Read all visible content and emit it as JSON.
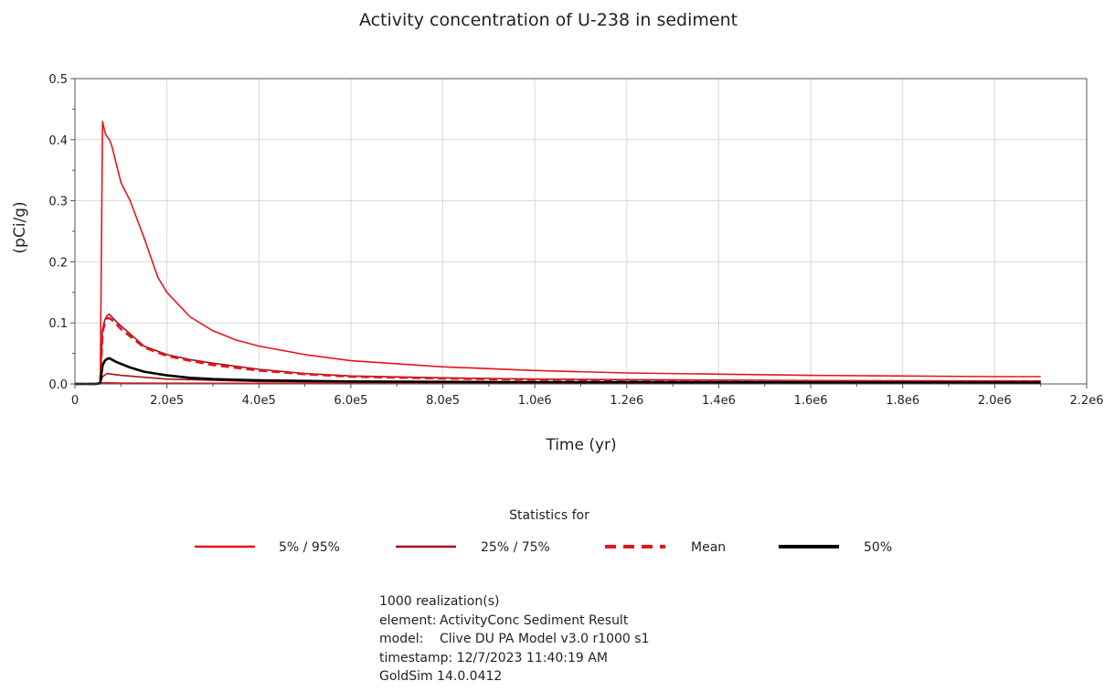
{
  "chart_data": {
    "type": "line",
    "title": "Activity concentration of U-238 in sediment",
    "xlabel": "Time (yr)",
    "ylabel": "(pCi/g)",
    "xlim": [
      0,
      2200000
    ],
    "ylim": [
      0,
      0.5
    ],
    "xticks": [
      0,
      200000,
      400000,
      600000,
      800000,
      1000000,
      1200000,
      1400000,
      1600000,
      1800000,
      2000000,
      2200000
    ],
    "xtick_labels": [
      "0",
      "2.0e5",
      "4.0e5",
      "6.0e5",
      "8.0e5",
      "1.0e6",
      "1.2e6",
      "1.4e6",
      "1.6e6",
      "1.8e6",
      "2.0e6",
      "2.2e6"
    ],
    "yticks": [
      0,
      0.1,
      0.2,
      0.3,
      0.4,
      0.5
    ],
    "ytick_labels": [
      "0.0",
      "0.1",
      "0.2",
      "0.3",
      "0.4",
      "0.5"
    ],
    "grid": true,
    "legend_title": "Statistics for",
    "legend_placement": "bottom",
    "series": [
      {
        "name": "5% / 95%",
        "color": "#e8141c",
        "style": "solid",
        "lines": [
          {
            "x": [
              0,
              45000,
              55000,
              60000,
              63000,
              66000,
              70000,
              75000,
              80000,
              90000,
              100000,
              120000,
              150000,
              180000,
              200000,
              250000,
              300000,
              350000,
              400000,
              500000,
              600000,
              800000,
              1000000,
              1200000,
              1400000,
              1600000,
              1800000,
              2000000,
              2100000
            ],
            "y": [
              0,
              0,
              0.002,
              0.43,
              0.42,
              0.41,
              0.405,
              0.4,
              0.39,
              0.36,
              0.33,
              0.3,
              0.24,
              0.175,
              0.15,
              0.11,
              0.087,
              0.072,
              0.062,
              0.048,
              0.038,
              0.028,
              0.022,
              0.018,
              0.016,
              0.014,
              0.013,
              0.012,
              0.012
            ]
          },
          {
            "x": [
              0,
              45000,
              55000,
              60000,
              100000,
              200000,
              400000,
              800000,
              1200000,
              1600000,
              2000000,
              2100000
            ],
            "y": [
              0,
              0,
              0.0005,
              0.002,
              0.0015,
              0.0012,
              0.001,
              0.0008,
              0.0007,
              0.0006,
              0.0005,
              0.0005
            ]
          }
        ]
      },
      {
        "name": "25% / 75%",
        "color": "#a0141c",
        "style": "solid",
        "lines": [
          {
            "x": [
              0,
              45000,
              55000,
              60000,
              65000,
              70000,
              75000,
              80000,
              90000,
              100000,
              120000,
              150000,
              200000,
              250000,
              300000,
              400000,
              500000,
              600000,
              800000,
              1000000,
              1200000,
              1500000,
              1800000,
              2100000
            ],
            "y": [
              0,
              0,
              0.002,
              0.09,
              0.105,
              0.112,
              0.114,
              0.11,
              0.102,
              0.095,
              0.082,
              0.062,
              0.048,
              0.04,
              0.034,
              0.024,
              0.017,
              0.013,
              0.01,
              0.008,
              0.007,
              0.006,
              0.005,
              0.005
            ]
          },
          {
            "x": [
              0,
              45000,
              55000,
              60000,
              70000,
              80000,
              100000,
              150000,
              200000,
              300000,
              400000,
              600000,
              800000,
              1200000,
              1600000,
              2100000
            ],
            "y": [
              0,
              0,
              0.001,
              0.012,
              0.017,
              0.016,
              0.014,
              0.011,
              0.008,
              0.006,
              0.004,
              0.003,
              0.0025,
              0.002,
              0.0015,
              0.0012
            ]
          }
        ]
      },
      {
        "name": "Mean",
        "color": "#e8141c",
        "style": "dashed",
        "lines": [
          {
            "x": [
              0,
              45000,
              55000,
              60000,
              65000,
              70000,
              75000,
              80000,
              90000,
              100000,
              120000,
              150000,
              200000,
              250000,
              300000,
              400000,
              500000,
              600000,
              800000,
              1000000,
              1200000,
              1500000,
              1800000,
              2100000
            ],
            "y": [
              0,
              0,
              0.002,
              0.085,
              0.1,
              0.107,
              0.108,
              0.105,
              0.098,
              0.09,
              0.078,
              0.06,
              0.046,
              0.038,
              0.031,
              0.022,
              0.016,
              0.012,
              0.009,
              0.007,
              0.006,
              0.005,
              0.0045,
              0.004
            ]
          }
        ]
      },
      {
        "name": "50%",
        "color": "#000000",
        "style": "solid",
        "lines": [
          {
            "x": [
              0,
              45000,
              55000,
              60000,
              65000,
              70000,
              75000,
              80000,
              90000,
              100000,
              120000,
              150000,
              200000,
              250000,
              300000,
              400000,
              500000,
              600000,
              800000,
              1000000,
              1200000,
              1500000,
              1800000,
              2100000
            ],
            "y": [
              0,
              0,
              0.001,
              0.03,
              0.038,
              0.041,
              0.042,
              0.04,
              0.036,
              0.033,
              0.027,
              0.02,
              0.014,
              0.01,
              0.008,
              0.006,
              0.005,
              0.004,
              0.0035,
              0.003,
              0.0028,
              0.0025,
              0.0022,
              0.002
            ]
          }
        ]
      }
    ]
  },
  "footer": {
    "realizations": "1000 realization(s)",
    "element_key": "element:",
    "element_value": "ActivityConc Sediment Result",
    "model_key": "model:",
    "model_value": "Clive DU PA Model v3.0 r1000 s1",
    "timestamp": "timestamp: 12/7/2023 11:40:19 AM",
    "software": "GoldSim 14.0.0412"
  }
}
